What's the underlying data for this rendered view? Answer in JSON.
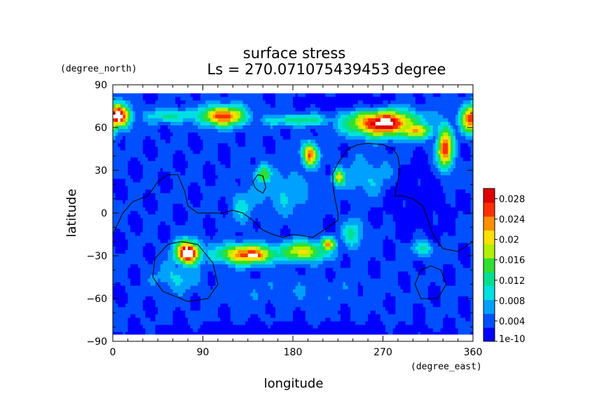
{
  "chart_data": {
    "type": "heatmap",
    "title": "surface stress",
    "subtitle": "Ls = 270.071075439453 degree",
    "xlabel": "longitude",
    "ylabel": "latitude",
    "x_unit": "(degree_east)",
    "y_unit": "(degree_north)",
    "xlim": [
      0,
      360
    ],
    "ylim": [
      -90,
      90
    ],
    "x_ticks": [
      "0",
      "90",
      "180",
      "270",
      "360"
    ],
    "y_ticks": [
      "90",
      "60",
      "30",
      "0",
      "−30",
      "−60",
      "−90"
    ],
    "x_tick_values": [
      0,
      90,
      180,
      270,
      360
    ],
    "y_tick_values": [
      90,
      60,
      30,
      0,
      -30,
      -60,
      -90
    ],
    "colorbar": {
      "labels": [
        "0.028",
        "0.024",
        "0.02",
        "0.016",
        "0.012",
        "0.008",
        "0.004",
        "1e-10"
      ],
      "label_values": [
        0.028,
        0.024,
        0.02,
        0.016,
        0.012,
        0.008,
        0.004,
        0.0
      ],
      "min": 0.0,
      "max": 0.03,
      "colors": [
        "#0000ff",
        "#0050ff",
        "#00a0ff",
        "#00e0e0",
        "#00e090",
        "#30e030",
        "#b0f000",
        "#ffe000",
        "#ff9000",
        "#ff3000",
        "#e00000"
      ]
    },
    "field": {
      "background": 0.003,
      "hotspots": [
        {
          "lon": 5,
          "lat": 68,
          "rlon": 12,
          "rlat": 8,
          "value": 0.032
        },
        {
          "lon": 358,
          "lat": 66,
          "rlon": 10,
          "rlat": 10,
          "value": 0.026
        },
        {
          "lon": 110,
          "lat": 68,
          "rlon": 22,
          "rlat": 7,
          "value": 0.027
        },
        {
          "lon": 60,
          "lat": 68,
          "rlon": 28,
          "rlat": 5,
          "value": 0.012
        },
        {
          "lon": 185,
          "lat": 65,
          "rlon": 35,
          "rlat": 4,
          "value": 0.013
        },
        {
          "lon": 270,
          "lat": 63,
          "rlon": 34,
          "rlat": 9,
          "value": 0.031
        },
        {
          "lon": 300,
          "lat": 58,
          "rlon": 20,
          "rlat": 6,
          "value": 0.022
        },
        {
          "lon": 332,
          "lat": 45,
          "rlon": 8,
          "rlat": 16,
          "value": 0.026
        },
        {
          "lon": 197,
          "lat": 41,
          "rlon": 8,
          "rlat": 8,
          "value": 0.025
        },
        {
          "lon": 150,
          "lat": 27,
          "rlon": 8,
          "rlat": 7,
          "value": 0.016
        },
        {
          "lon": 226,
          "lat": 25,
          "rlon": 6,
          "rlat": 6,
          "value": 0.02
        },
        {
          "lon": 255,
          "lat": 25,
          "rlon": 30,
          "rlat": 14,
          "value": 0.008
        },
        {
          "lon": 170,
          "lat": 15,
          "rlon": 30,
          "rlat": 18,
          "value": 0.008
        },
        {
          "lon": 130,
          "lat": 5,
          "rlon": 12,
          "rlat": 12,
          "value": 0.009
        },
        {
          "lon": 75,
          "lat": -28,
          "rlon": 12,
          "rlat": 8,
          "value": 0.034
        },
        {
          "lon": 135,
          "lat": -29,
          "rlon": 30,
          "rlat": 7,
          "value": 0.026
        },
        {
          "lon": 140,
          "lat": -30,
          "rlon": 14,
          "rlat": 3,
          "value": 0.032
        },
        {
          "lon": 190,
          "lat": -27,
          "rlon": 25,
          "rlat": 7,
          "value": 0.02
        },
        {
          "lon": 215,
          "lat": -22,
          "rlon": 8,
          "rlat": 5,
          "value": 0.022
        },
        {
          "lon": 240,
          "lat": -15,
          "rlon": 10,
          "rlat": 10,
          "value": 0.012
        },
        {
          "lon": 65,
          "lat": -45,
          "rlon": 22,
          "rlat": 10,
          "value": 0.009
        },
        {
          "lon": 310,
          "lat": -25,
          "rlon": 10,
          "rlat": 6,
          "value": 0.012
        },
        {
          "lon": 180,
          "lat": -55,
          "rlon": 80,
          "rlat": 10,
          "value": 0.005
        }
      ],
      "low_zones": [
        {
          "lon": 235,
          "lat": 78,
          "rlon": 60,
          "rlat": 8
        },
        {
          "lon": 305,
          "lat": 10,
          "rlon": 45,
          "rlat": 35
        },
        {
          "lon": 180,
          "lat": -85,
          "rlon": 200,
          "rlat": 10
        }
      ],
      "white_threshold": 0.029
    },
    "contours": [
      [
        [
          0,
          -15
        ],
        [
          10,
          0
        ],
        [
          20,
          8
        ],
        [
          35,
          12
        ],
        [
          45,
          22
        ],
        [
          55,
          27
        ],
        [
          65,
          27
        ],
        [
          72,
          15
        ],
        [
          75,
          5
        ],
        [
          85,
          0
        ],
        [
          100,
          0
        ],
        [
          110,
          0
        ],
        [
          120,
          2
        ],
        [
          130,
          0
        ],
        [
          140,
          -5
        ],
        [
          150,
          -12
        ],
        [
          160,
          -15
        ],
        [
          170,
          -17
        ],
        [
          180,
          -15
        ],
        [
          200,
          -17
        ],
        [
          215,
          -10
        ],
        [
          225,
          -5
        ],
        [
          225,
          0
        ],
        [
          222,
          10
        ],
        [
          220,
          20
        ],
        [
          220,
          28
        ],
        [
          225,
          35
        ],
        [
          230,
          40
        ],
        [
          235,
          45
        ],
        [
          245,
          48
        ],
        [
          255,
          49
        ],
        [
          270,
          48
        ],
        [
          280,
          45
        ],
        [
          285,
          40
        ],
        [
          287,
          30
        ],
        [
          284,
          20
        ],
        [
          282,
          12
        ],
        [
          290,
          12
        ],
        [
          300,
          10
        ],
        [
          310,
          5
        ],
        [
          315,
          -5
        ],
        [
          320,
          -15
        ],
        [
          330,
          -25
        ],
        [
          345,
          -27
        ],
        [
          360,
          -20
        ]
      ],
      [
        [
          140,
          22
        ],
        [
          145,
          27
        ],
        [
          150,
          26
        ],
        [
          153,
          18
        ],
        [
          150,
          14
        ],
        [
          145,
          16
        ],
        [
          142,
          18
        ],
        [
          140,
          22
        ]
      ],
      [
        [
          68,
          -20
        ],
        [
          85,
          -22
        ],
        [
          100,
          -35
        ],
        [
          105,
          -50
        ],
        [
          95,
          -60
        ],
        [
          75,
          -62
        ],
        [
          50,
          -55
        ],
        [
          40,
          -45
        ],
        [
          42,
          -32
        ],
        [
          55,
          -22
        ],
        [
          68,
          -20
        ]
      ],
      [
        [
          318,
          -37
        ],
        [
          328,
          -40
        ],
        [
          333,
          -50
        ],
        [
          325,
          -60
        ],
        [
          308,
          -60
        ],
        [
          302,
          -50
        ],
        [
          308,
          -40
        ],
        [
          318,
          -37
        ]
      ]
    ]
  }
}
